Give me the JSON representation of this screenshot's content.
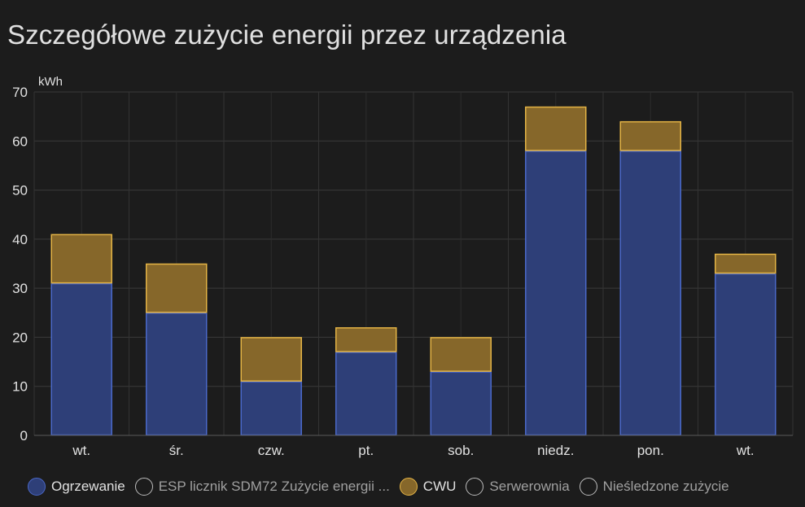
{
  "card": {
    "title": "Szczegółowe zużycie energii przez urządzenia"
  },
  "chart_data": {
    "type": "bar",
    "stacked": true,
    "title": "Szczegółowe zużycie energii przez urządzenia",
    "ylabel": "kWh",
    "xlabel": "",
    "ylim": [
      0,
      70
    ],
    "yticks": [
      0,
      10,
      20,
      30,
      40,
      50,
      60,
      70
    ],
    "grid": true,
    "legend_position": "bottom",
    "categories": [
      "wt.",
      "śr.",
      "czw.",
      "pt.",
      "sob.",
      "niedz.",
      "pon.",
      "wt."
    ],
    "series": [
      {
        "name": "Ogrzewanie",
        "values": [
          31,
          25,
          11,
          17,
          13,
          58,
          58,
          33
        ],
        "fill": "#2e3f78",
        "stroke": "#4a68c8",
        "visible": true
      },
      {
        "name": "CWU",
        "values": [
          10,
          10,
          9,
          5,
          7,
          9,
          6,
          4
        ],
        "fill": "#86672a",
        "stroke": "#e3b345",
        "visible": true
      }
    ]
  },
  "legend": [
    {
      "label": "Ogrzewanie",
      "swatch": "#2e3f78",
      "border": "#4a68c8",
      "hidden": false
    },
    {
      "label": "ESP licznik SDM72 Zużycie energii ...",
      "swatch": "transparent",
      "border": "#bdbdbd",
      "hidden": true
    },
    {
      "label": "CWU",
      "swatch": "#86672a",
      "border": "#e3b345",
      "hidden": false
    },
    {
      "label": "Serwerownia",
      "swatch": "transparent",
      "border": "#bdbdbd",
      "hidden": true
    },
    {
      "label": "Nieśledzone zużycie",
      "swatch": "transparent",
      "border": "#bdbdbd",
      "hidden": true
    }
  ]
}
